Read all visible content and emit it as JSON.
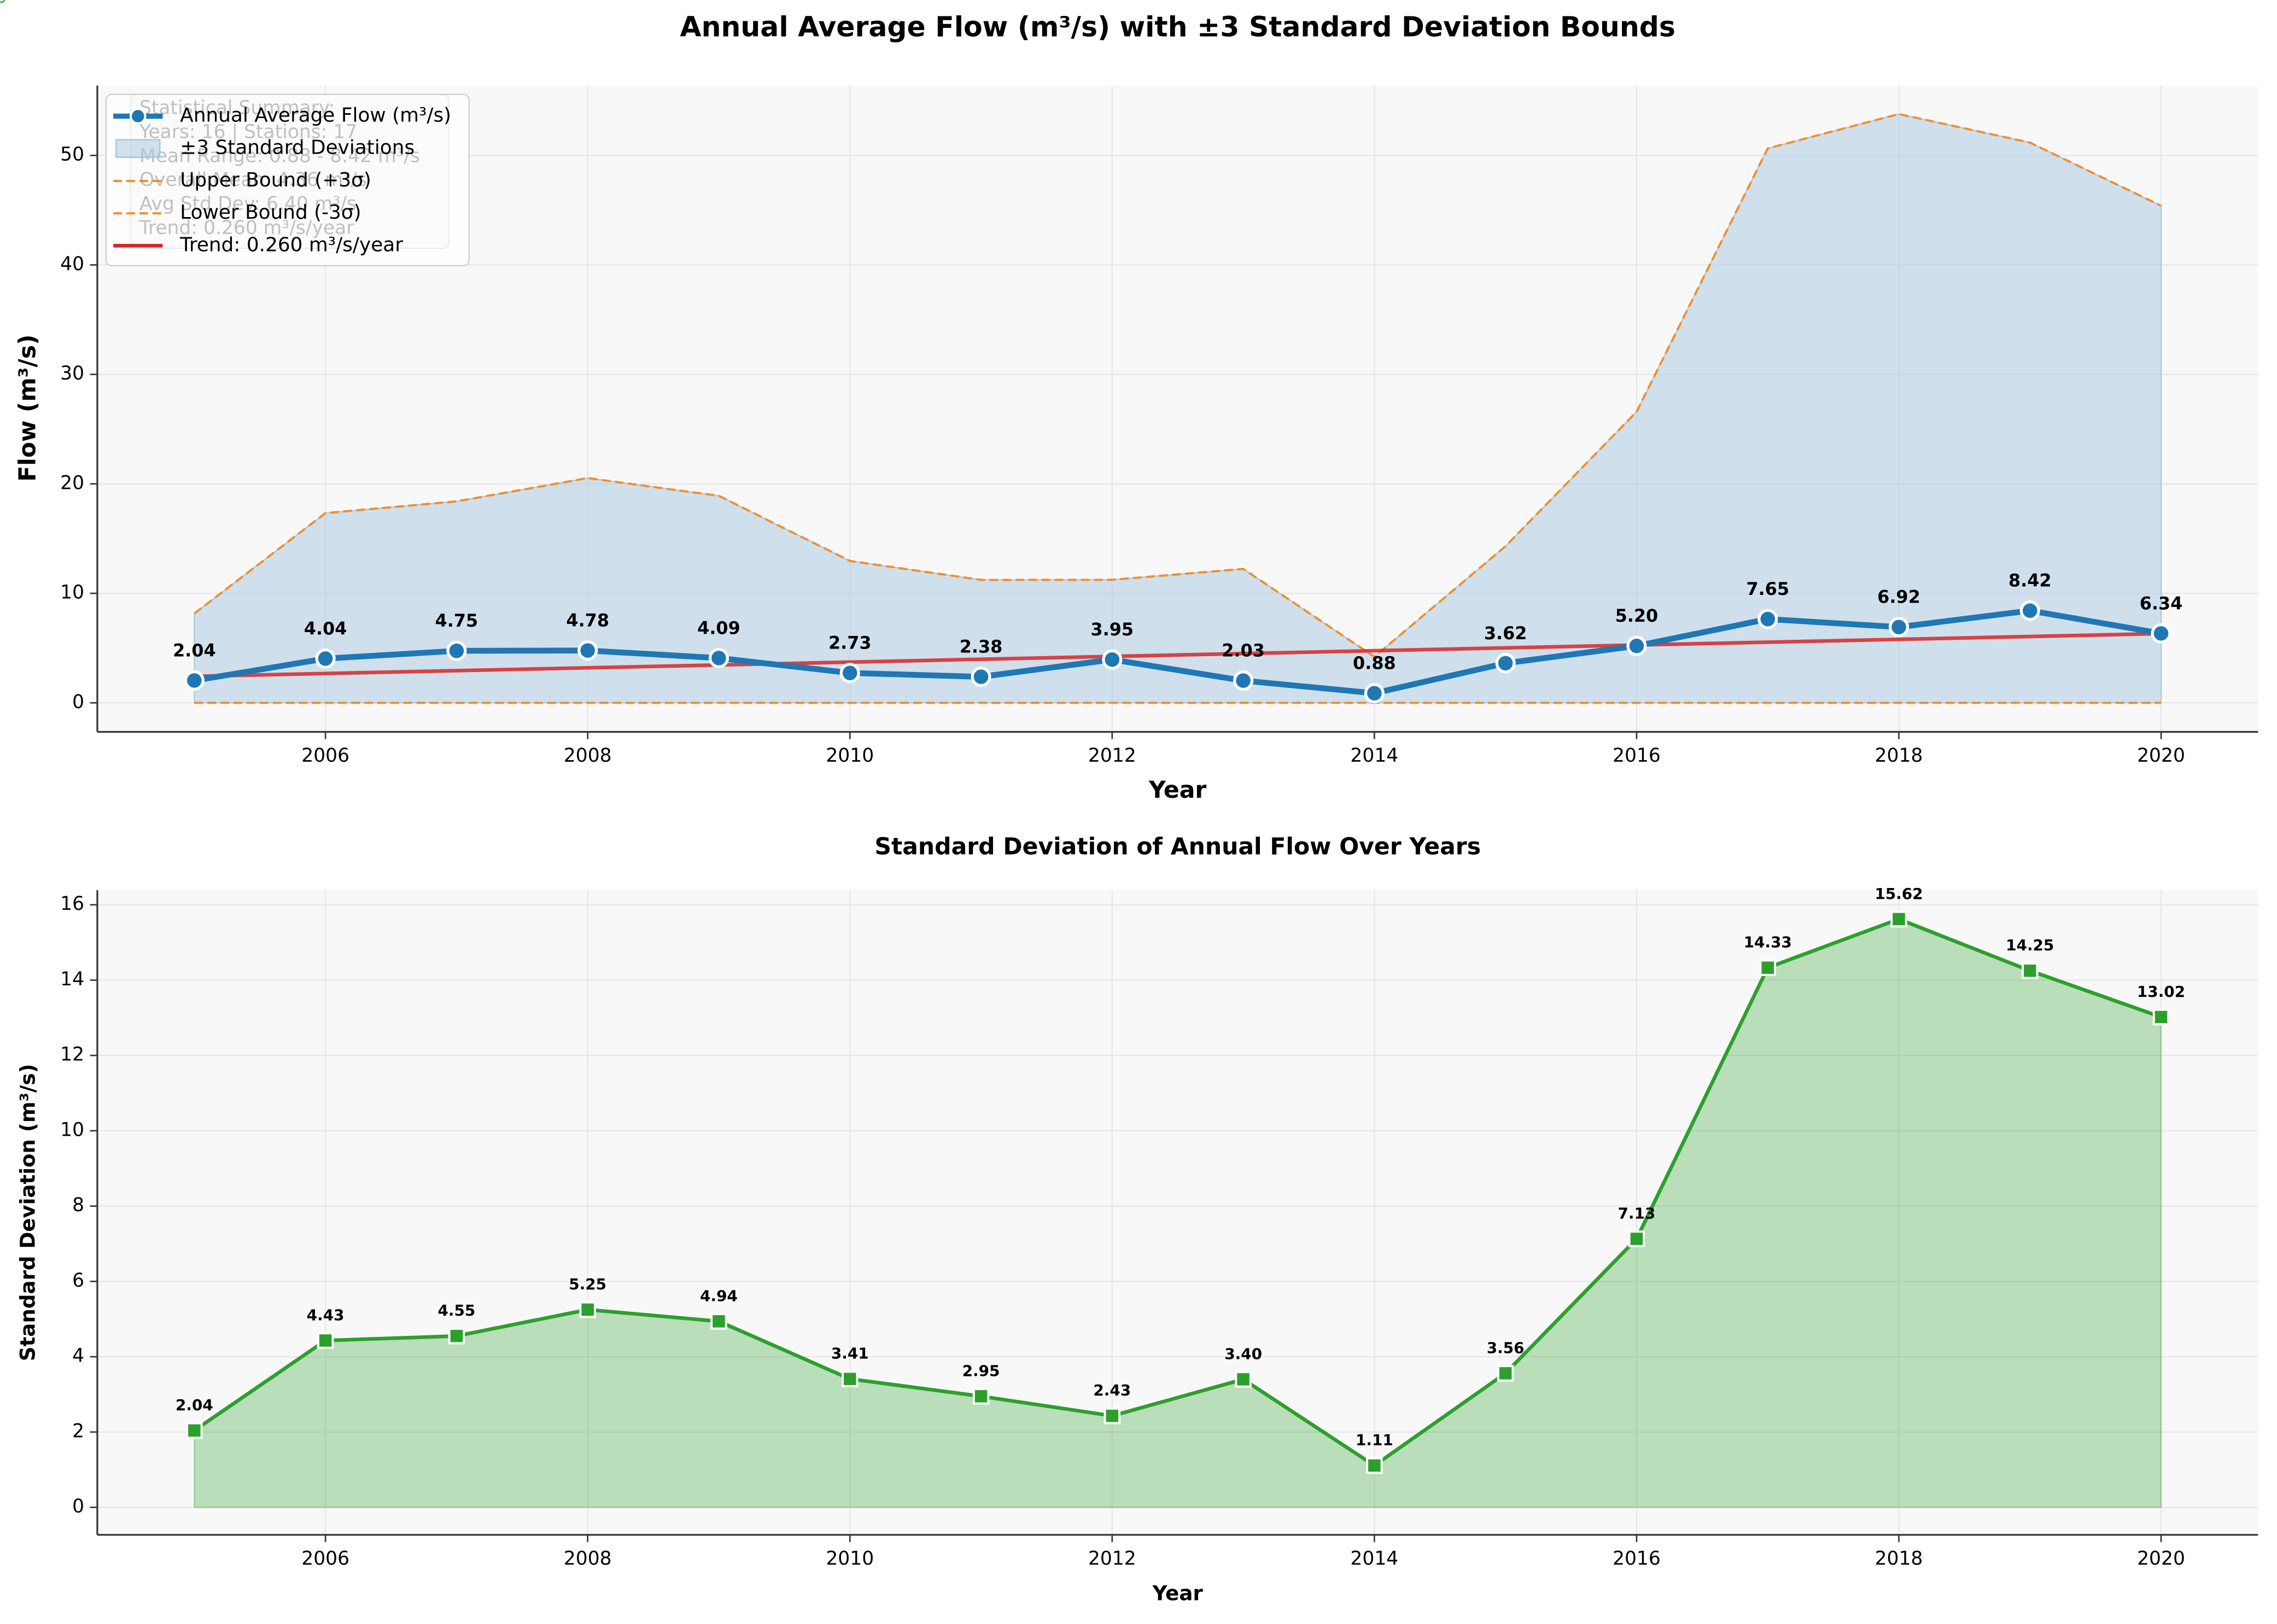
{
  "chart_data": [
    {
      "type": "line",
      "title": "Annual Average Flow (m³/s) with ±3 Standard Deviation Bounds",
      "xlabel": "Year",
      "ylabel": "Flow (m³/s)",
      "x": [
        2005,
        2006,
        2007,
        2008,
        2009,
        2010,
        2011,
        2012,
        2013,
        2014,
        2015,
        2016,
        2017,
        2018,
        2019,
        2020
      ],
      "series": [
        {
          "name": "Annual Average Flow (m³/s)",
          "color": "#1f77b4",
          "linewidth": 4,
          "marker": "circle",
          "values": [
            2.04,
            4.04,
            4.75,
            4.78,
            4.09,
            2.73,
            2.38,
            3.95,
            2.03,
            0.88,
            3.62,
            5.2,
            7.65,
            6.92,
            8.42,
            6.34
          ],
          "value_labels": [
            "2.04",
            "4.04",
            "4.75",
            "4.78",
            "4.09",
            "2.73",
            "2.38",
            "3.95",
            "2.03",
            "0.88",
            "3.62",
            "5.20",
            "7.65",
            "6.92",
            "8.42",
            "6.34"
          ]
        },
        {
          "name": "Upper Bound (+3σ)",
          "color": "#f28e2b",
          "linewidth": 1.5,
          "linestyle": "dashed",
          "values": [
            8.16,
            17.33,
            18.4,
            20.53,
            18.91,
            12.96,
            11.23,
            11.24,
            12.23,
            4.21,
            14.3,
            26.59,
            50.64,
            53.78,
            51.17,
            45.4
          ]
        },
        {
          "name": "Lower Bound (-3σ)",
          "color": "#f28e2b",
          "linewidth": 1.5,
          "linestyle": "dashed",
          "values": [
            0,
            0,
            0,
            0,
            0,
            0,
            0,
            0,
            0,
            0,
            0,
            0,
            0,
            0,
            0,
            0
          ]
        },
        {
          "name": "Trend: 0.260 m³/s/year",
          "color": "#d62728",
          "linewidth": 2.5,
          "x": [
            2005,
            2020
          ],
          "values": [
            2.42,
            6.32
          ]
        }
      ],
      "band": {
        "name": "±3 Standard Deviations",
        "color": "#a6c8e0"
      },
      "annotation": [
        "Statistical Summary:",
        "Years: 16 | Stations: 17",
        "Mean Range: 0.88 - 8.42 m³/s",
        "Overall Mean: 4.36 m³/s",
        "Avg Std Dev: 6.40 m³/s",
        "Trend: 0.260 m³/s/year"
      ],
      "legend": "upper left",
      "xlim": [
        2004.26,
        2020.74
      ],
      "xticks": [
        2006,
        2008,
        2010,
        2012,
        2014,
        2016,
        2018,
        2020
      ],
      "ylim": [
        -2.65,
        56.37
      ],
      "yticks": [
        0,
        10,
        20,
        30,
        40,
        50
      ],
      "grid": true
    },
    {
      "type": "line",
      "title": "Standard Deviation of Annual Flow Over Years",
      "xlabel": "Year",
      "ylabel": "Standard Deviation (m³/s)",
      "x": [
        2005,
        2006,
        2007,
        2008,
        2009,
        2010,
        2011,
        2012,
        2013,
        2014,
        2015,
        2016,
        2017,
        2018,
        2019,
        2020
      ],
      "series": [
        {
          "name": "Standard Deviation",
          "color": "#2ca02c",
          "linewidth": 2.5,
          "marker": "square",
          "fill": true,
          "values": [
            2.04,
            4.43,
            4.55,
            5.25,
            4.94,
            3.41,
            2.95,
            2.43,
            3.4,
            1.11,
            3.56,
            7.13,
            14.33,
            15.62,
            14.25,
            13.02
          ],
          "value_labels": [
            "2.04",
            "4.43",
            "4.55",
            "5.25",
            "4.94",
            "3.41",
            "2.95",
            "2.43",
            "3.40",
            "1.11",
            "3.56",
            "7.13",
            "14.33",
            "15.62",
            "14.25",
            "13.02"
          ]
        }
      ],
      "xlim": [
        2004.26,
        2020.74
      ],
      "xticks": [
        2006,
        2008,
        2010,
        2012,
        2014,
        2016,
        2018,
        2020
      ],
      "ylim": [
        -0.73,
        16.39
      ],
      "yticks": [
        0,
        2,
        4,
        6,
        8,
        10,
        12,
        14,
        16
      ],
      "grid": true
    }
  ]
}
